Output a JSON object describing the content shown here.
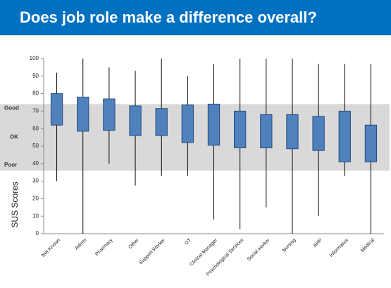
{
  "chart_data": {
    "type": "box",
    "title": "Does job role make a difference overall?",
    "y_label": "SUS Scores",
    "categories": [
      "Not Known",
      "Admin",
      "Pharmacy",
      "Other",
      "Support Worker",
      "OT",
      "Clinical Manager",
      "Psychological Services",
      "Social worker",
      "Nursing",
      "AHP",
      "Informatics",
      "Medical"
    ],
    "low": [
      30,
      0,
      40,
      27.5,
      33,
      33,
      8,
      2.5,
      15,
      0,
      10,
      33,
      0
    ],
    "q1": [
      62,
      58.5,
      59,
      56,
      56,
      52,
      50.5,
      49,
      49,
      48.5,
      47.5,
      41,
      41
    ],
    "q3": [
      80,
      78,
      77,
      73,
      71.5,
      73.5,
      74,
      70,
      68,
      68,
      67,
      70,
      62
    ],
    "high": [
      92,
      100,
      95,
      93,
      100,
      90,
      97,
      100,
      100,
      100,
      97,
      97,
      97
    ],
    "color": "#4f81bd",
    "ylim": [
      0,
      100
    ],
    "yticks": [
      0,
      10,
      20,
      30,
      40,
      50,
      60,
      70,
      80,
      90,
      100
    ],
    "shaded_range": [
      36,
      74
    ],
    "shaded_labels": [
      "Good",
      "OK",
      "Poor"
    ]
  }
}
